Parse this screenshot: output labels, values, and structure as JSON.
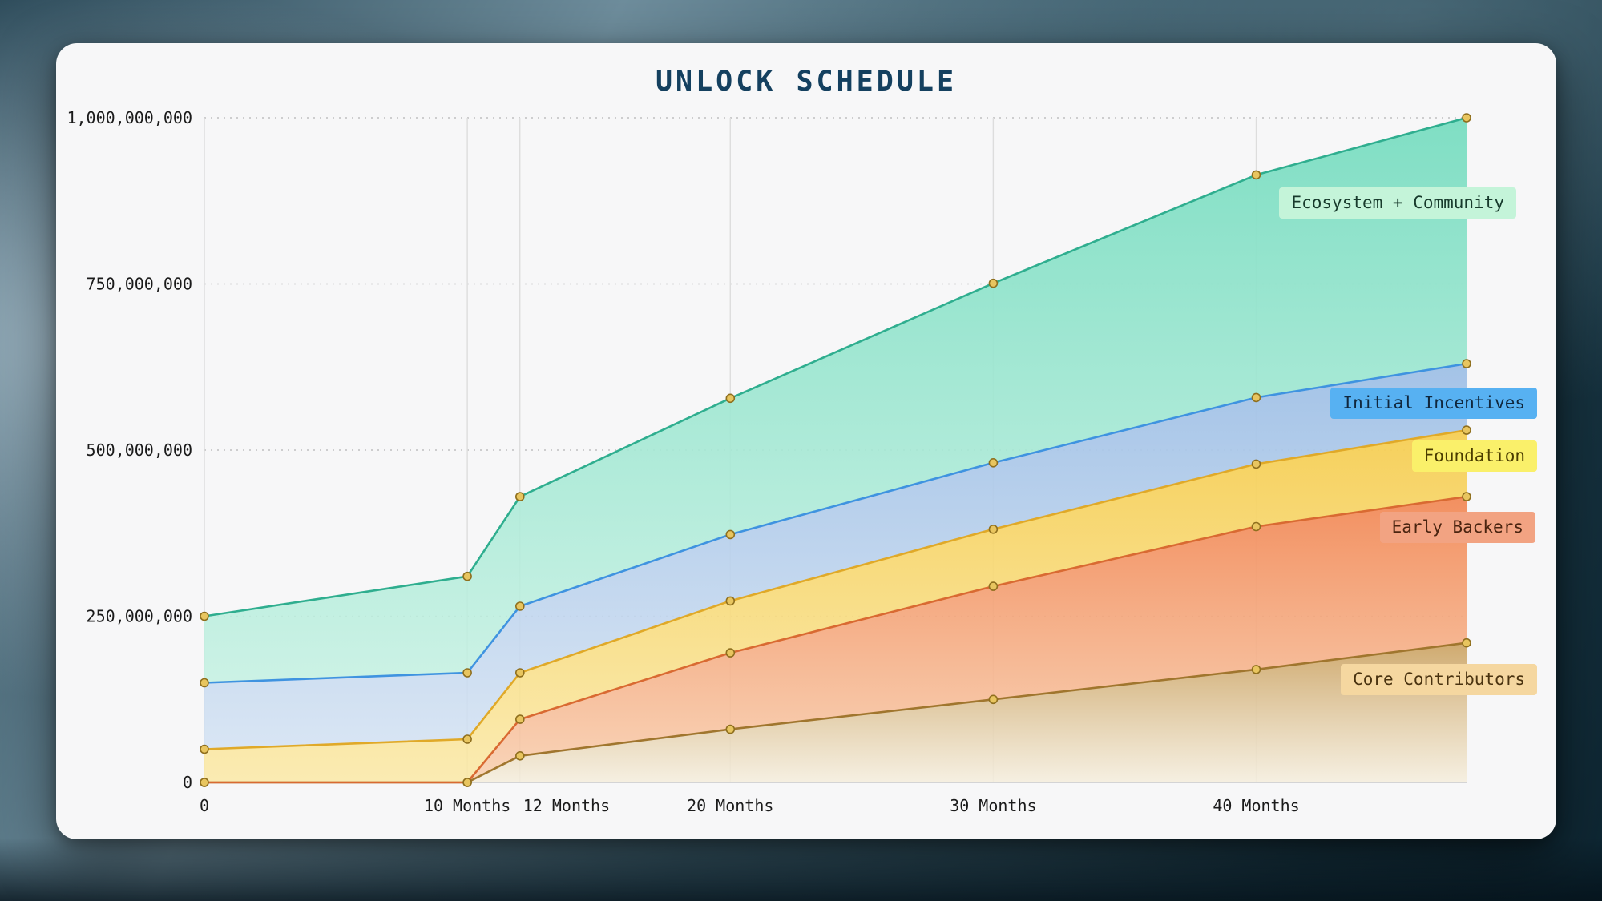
{
  "chart_data": {
    "type": "area",
    "stacked": true,
    "title": "UNLOCK SCHEDULE",
    "xlabel": "",
    "ylabel": "",
    "xlim": [
      0,
      48
    ],
    "ylim": [
      0,
      1000000000
    ],
    "grid": {
      "horizontal": "dotted",
      "vertical": "solid"
    },
    "legend_position": "right-overlay",
    "x_months": [
      0,
      10,
      12,
      20,
      30,
      40,
      48
    ],
    "x_ticks": [
      {
        "month": 0,
        "label": "0",
        "align": "middle"
      },
      {
        "month": 10,
        "label": "10 Months",
        "align": "middle"
      },
      {
        "month": 12,
        "label": "12 Months",
        "align": "start"
      },
      {
        "month": 20,
        "label": "20 Months",
        "align": "middle"
      },
      {
        "month": 30,
        "label": "30 Months",
        "align": "middle"
      },
      {
        "month": 40,
        "label": "40 Months",
        "align": "middle"
      }
    ],
    "y_ticks": [
      {
        "value": 0,
        "label": "0"
      },
      {
        "value": 250000000,
        "label": "250,000,000"
      },
      {
        "value": 500000000,
        "label": "500,000,000"
      },
      {
        "value": 750000000,
        "label": "750,000,000"
      },
      {
        "value": 1000000000,
        "label": "1,000,000,000"
      }
    ],
    "series": [
      {
        "name": "Core Contributors",
        "values": [
          0,
          0,
          40000000,
          80000000,
          125000000,
          170000000,
          210000000
        ],
        "line_color": "#a0762e",
        "fill_top": "#cda668",
        "fill_bottom": "#f5eedd",
        "badge_bg": "#f5d7a0",
        "badge_text": "#4a3310"
      },
      {
        "name": "Early Backers",
        "values": [
          0,
          0,
          55000000,
          115000000,
          170000000,
          215000000,
          220000000
        ],
        "line_color": "#d96a32",
        "fill_top": "#f28a58",
        "fill_bottom": "#f9cfae",
        "badge_bg": "#f2a382",
        "badge_text": "#4a2410"
      },
      {
        "name": "Foundation",
        "values": [
          50000000,
          65000000,
          70000000,
          78000000,
          86000000,
          94000000,
          100000000
        ],
        "line_color": "#e0a928",
        "fill_top": "#f6ce53",
        "fill_bottom": "#fbe9a6",
        "badge_bg": "#faf06a",
        "badge_text": "#4a3c00"
      },
      {
        "name": "Initial Incentives",
        "values": [
          100000000,
          100000000,
          100000000,
          100000000,
          100000000,
          100000000,
          100000000
        ],
        "line_color": "#3f93e0",
        "fill_top": "#9fc0e6",
        "fill_bottom": "#d3e2f3",
        "badge_bg": "#57b1f2",
        "badge_text": "#10273d"
      },
      {
        "name": "Ecosystem + Community",
        "values": [
          100000000,
          145000000,
          165000000,
          205000000,
          270000000,
          335000000,
          370000000
        ],
        "line_color": "#2fae8f",
        "fill_top": "#79ddc1",
        "fill_bottom": "#c4f1e2",
        "badge_bg": "#c4f4d9",
        "badge_text": "#173a2c"
      }
    ],
    "marker": {
      "fill": "#e8c55f",
      "stroke": "#8f6f1e"
    }
  }
}
